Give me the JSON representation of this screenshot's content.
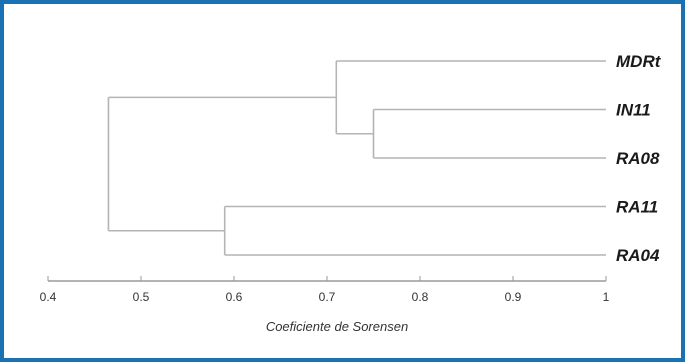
{
  "chart_data": {
    "type": "dendrogram",
    "xlabel": "Coeficiente de Sorensen",
    "xlim": [
      0.4,
      1.0
    ],
    "x_ticks": [
      "0.4",
      "0.5",
      "0.6",
      "0.7",
      "0.8",
      "0.9",
      "1"
    ],
    "leaves": [
      "MDRt",
      "IN11",
      "RA08",
      "RA11",
      "RA04"
    ],
    "clusters": [
      {
        "members": [
          "IN11",
          "RA08"
        ],
        "similarity": 0.75
      },
      {
        "members": [
          "MDRt",
          "IN11",
          "RA08"
        ],
        "similarity": 0.71
      },
      {
        "members": [
          "RA11",
          "RA04"
        ],
        "similarity": 0.59
      },
      {
        "members": [
          "MDRt",
          "IN11",
          "RA08",
          "RA11",
          "RA04"
        ],
        "similarity": 0.465
      }
    ]
  },
  "colors": {
    "frame": "#1b72b3",
    "branches": "#b4b4b4",
    "axis": "#9a9a9a"
  }
}
